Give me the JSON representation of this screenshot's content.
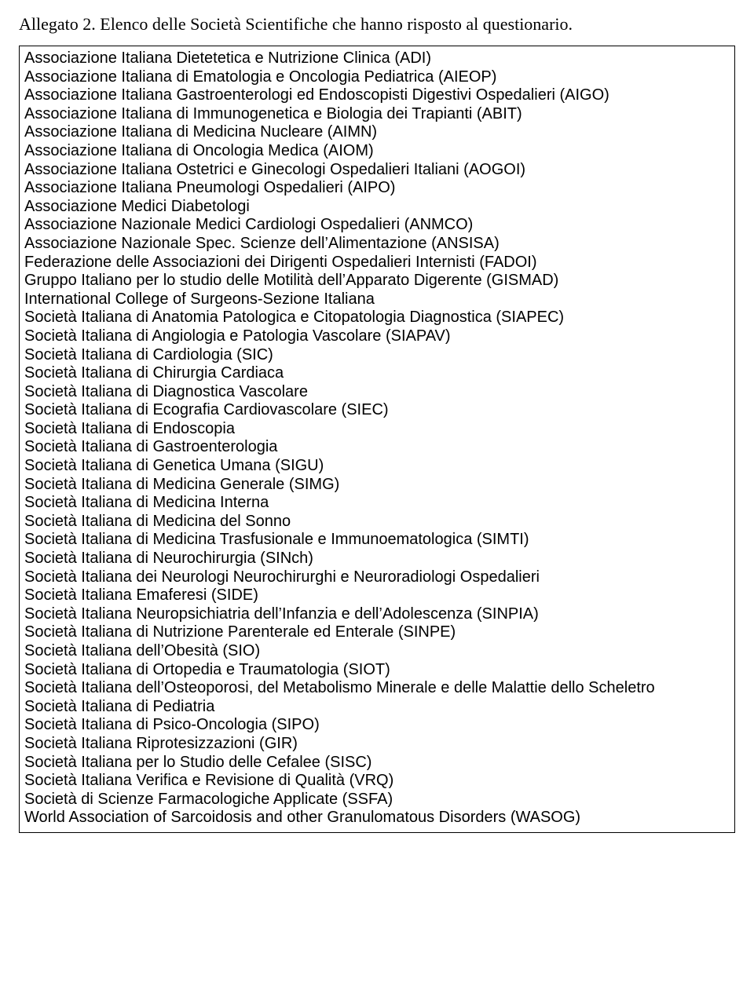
{
  "title": "Allegato 2. Elenco delle Società Scientifiche che hanno risposto al questionario.",
  "items": [
    "Associazione Italiana Dietetetica e Nutrizione Clinica (ADI)",
    "Associazione Italiana di Ematologia  e Oncologia Pediatrica (AIEOP)",
    "Associazione Italiana Gastroenterologi ed Endoscopisti Digestivi Ospedalieri (AIGO)",
    "Associazione Italiana di Immunogenetica e Biologia dei Trapianti (ABIT)",
    "Associazione Italiana di Medicina Nucleare (AIMN)",
    "Associazione Italiana di Oncologia Medica (AIOM)",
    "Associazione Italiana Ostetrici e Ginecologi Ospedalieri Italiani (AOGOI)",
    "Associazione Italiana Pneumologi Ospedalieri (AIPO)",
    "Associazione Medici Diabetologi",
    "Associazione Nazionale Medici Cardiologi Ospedalieri (ANMCO)",
    "Associazione Nazionale Spec. Scienze dell’Alimentazione (ANSISA)",
    "Federazione delle Associazioni dei Dirigenti Ospedalieri Internisti (FADOI)",
    "Gruppo Italiano per lo studio delle Motilità dell’Apparato Digerente (GISMAD)",
    "International College of Surgeons-Sezione Italiana",
    "Società Italiana di Anatomia Patologica e Citopatologia Diagnostica (SIAPEC)",
    "Società Italiana di Angiologia e Patologia Vascolare (SIAPAV)",
    "Società Italiana di Cardiologia (SIC)",
    "Società Italiana di Chirurgia Cardiaca",
    "Società Italiana di Diagnostica Vascolare",
    "Società Italiana di  Ecografia  Cardiovascolare (SIEC)",
    "Società Italiana di Endoscopia",
    "Società Italiana di Gastroenterologia",
    "Società Italiana di Genetica Umana (SIGU)",
    "Società Italiana di Medicina Generale (SIMG)",
    "Società Italiana di Medicina Interna",
    "Società Italiana  di Medicina del Sonno",
    "Società Italiana di Medicina Trasfusionale e Immunoematologica (SIMTI)",
    "Società Italiana di Neurochirurgia (SINch)",
    "Società Italiana dei Neurologi Neurochirurghi e Neuroradiologi Ospedalieri",
    "Società Italiana Emaferesi (SIDE)",
    "Società Italiana Neuropsichiatria dell’Infanzia e dell’Adolescenza (SINPIA)",
    "Società Italiana di Nutrizione Parenterale ed Enterale (SINPE)",
    "Società Italiana dell’Obesità (SIO)",
    "Società Italiana di Ortopedia  e Traumatologia (SIOT)",
    "Società Italiana dell’Osteoporosi, del Metabolismo Minerale e delle Malattie dello Scheletro",
    "Società Italiana di Pediatria",
    "Società Italiana di Psico-Oncologia (SIPO)",
    "Società Italiana Riprotesizzazioni (GIR)",
    "Società Italiana per lo Studio delle Cefalee (SISC)",
    "Società Italiana Verifica e Revisione di Qualità (VRQ)",
    "Società di Scienze Farmacologiche Applicate (SSFA)",
    "World Association of Sarcoidosis and other Granulomatous Disorders (WASOG)"
  ]
}
